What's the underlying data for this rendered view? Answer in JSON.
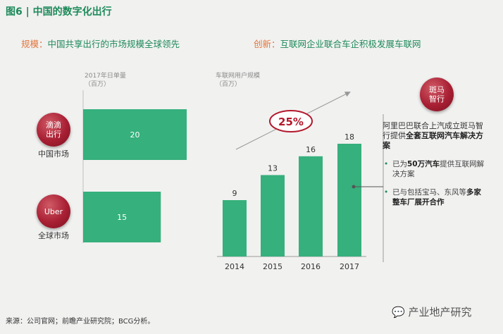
{
  "figure": {
    "title": "图6 | 中国的数字化出行",
    "left_header_key": "规模：",
    "left_header_text": "中国共享出行的市场规模全球领先",
    "right_header_key": "创新：",
    "right_header_text": "互联网企业联合车企积极发展车联网",
    "source": "来源：公司官网；前瞻产业研究院；BCG分析。",
    "watermark": "产业地产研究"
  },
  "badges": {
    "didi": "滴滴出行",
    "uber": "Uber",
    "banma": "斑马智行"
  },
  "chart_data": [
    {
      "type": "bar",
      "orientation": "horizontal",
      "ylabel": "2017年日单量",
      "unit": "（百万）",
      "categories": [
        "中国市场",
        "全球市场"
      ],
      "values": [
        20,
        15
      ],
      "grid": false,
      "colors": {
        "bar": "#36b07c"
      }
    },
    {
      "type": "bar",
      "ylabel": "车联网用户规模",
      "unit": "（百万）",
      "categories": [
        "2014",
        "2015",
        "2016",
        "2017"
      ],
      "values": [
        9,
        13,
        16,
        18
      ],
      "annotation": "25%",
      "grid": false,
      "colors": {
        "bar": "#36b07c",
        "annotation": "#b3182c",
        "trend": "#999999"
      }
    }
  ],
  "notes": {
    "head_plain": "阿里巴巴联合上汽成立斑马智行提供",
    "head_bold": "全套互联网汽车解决方案",
    "item1_a": "已为",
    "item1_b": "50万汽车",
    "item1_c": "提供互联网解决方案",
    "item2_a": "已与包括宝马、东风等",
    "item2_b": "多家整车厂展开合作"
  }
}
